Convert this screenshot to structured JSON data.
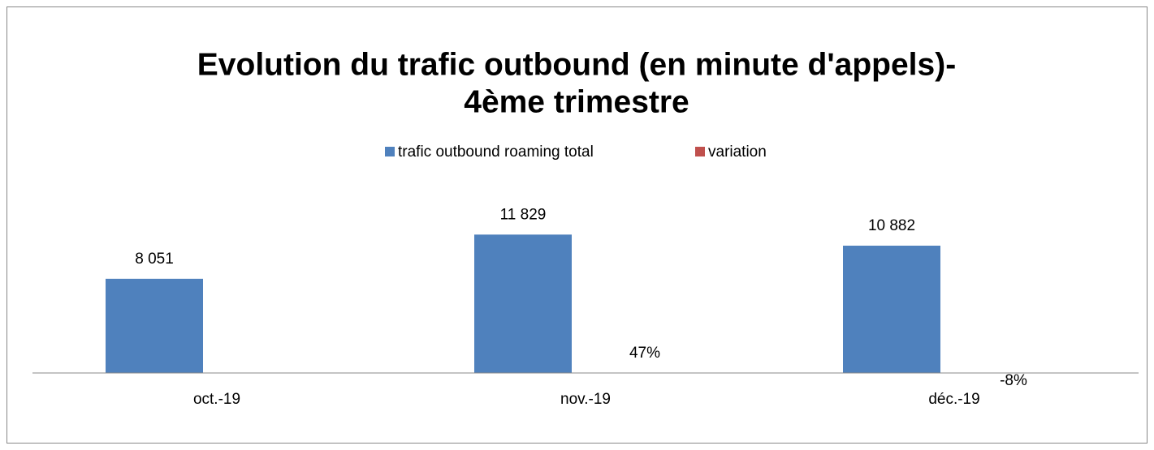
{
  "chart_data": {
    "type": "bar",
    "title": [
      "Evolution du trafic outbound (en minute d'appels)-",
      "4ème trimestre"
    ],
    "categories": [
      "oct.-19",
      "nov.-19",
      "déc.-19"
    ],
    "series": [
      {
        "name": "trafic outbound roaming total",
        "color": "#4f81bd",
        "values": [
          8051,
          11829,
          10882
        ],
        "value_labels": [
          "8 051",
          "11 829",
          "10 882"
        ]
      },
      {
        "name": "variation",
        "color": "#c0504d",
        "values": [
          null,
          0.47,
          -0.08
        ],
        "value_labels": [
          null,
          "47%",
          "-8%"
        ]
      }
    ],
    "ylim": [
      0,
      14000
    ],
    "legend": "top"
  }
}
